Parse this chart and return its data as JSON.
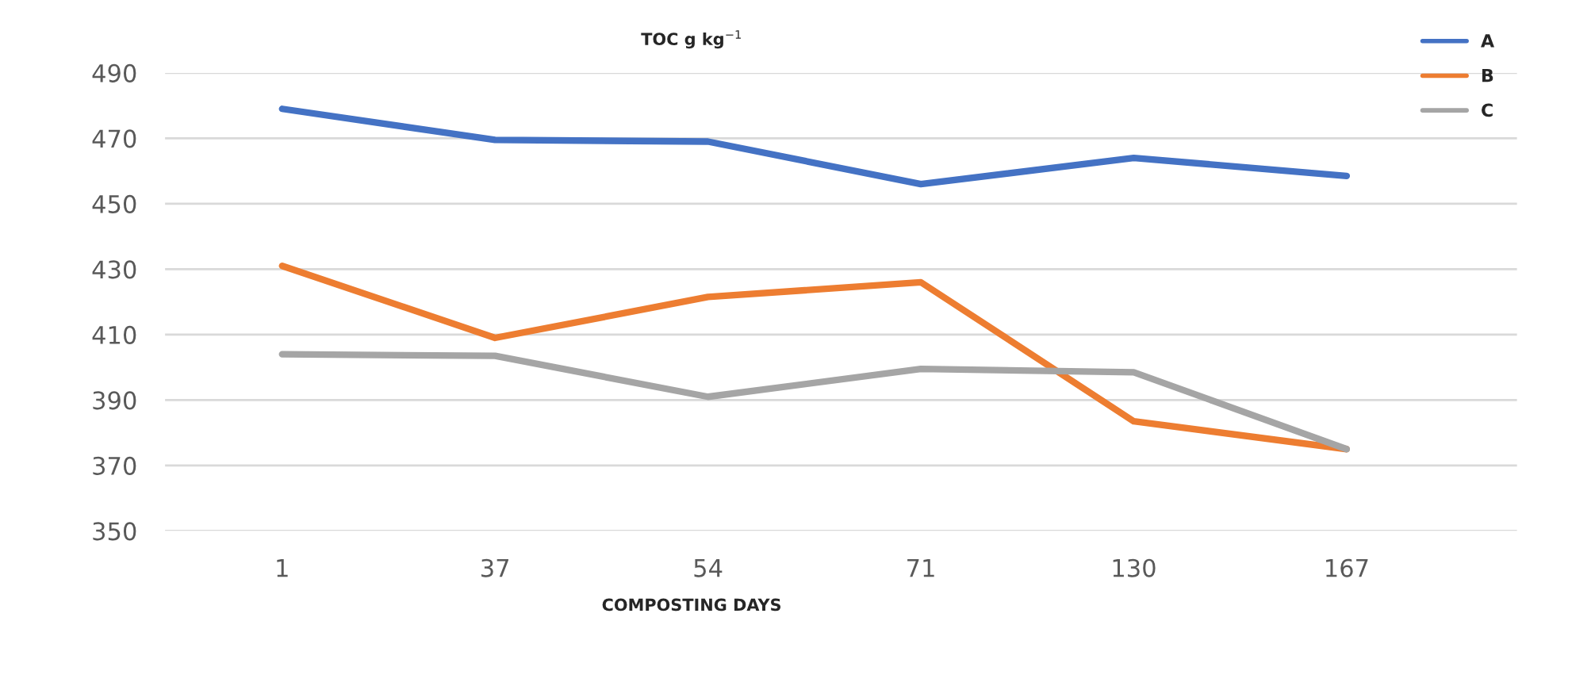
{
  "chart_data": {
    "type": "line",
    "title": "TOC g kg$^{−1}$",
    "xlabel": "COMPOSTING DAYS",
    "categories": [
      "1",
      "37",
      "54",
      "71",
      "130",
      "167"
    ],
    "series": [
      {
        "name": "A",
        "color": "#4472c4",
        "values": [
          479,
          469.5,
          469,
          456,
          464,
          458.5
        ]
      },
      {
        "name": "B",
        "color": "#ed7d31",
        "values": [
          431,
          409,
          421.5,
          426,
          383.5,
          375
        ]
      },
      {
        "name": "C",
        "color": "#a5a5a5",
        "values": [
          404,
          403.5,
          391,
          399.5,
          398.5,
          375
        ]
      }
    ],
    "ylim": [
      350,
      490
    ],
    "yticks": [
      350,
      370,
      390,
      410,
      430,
      450,
      470,
      490
    ],
    "grid": "y",
    "legend": "top right",
    "line_style": "solid",
    "marker": "none"
  }
}
